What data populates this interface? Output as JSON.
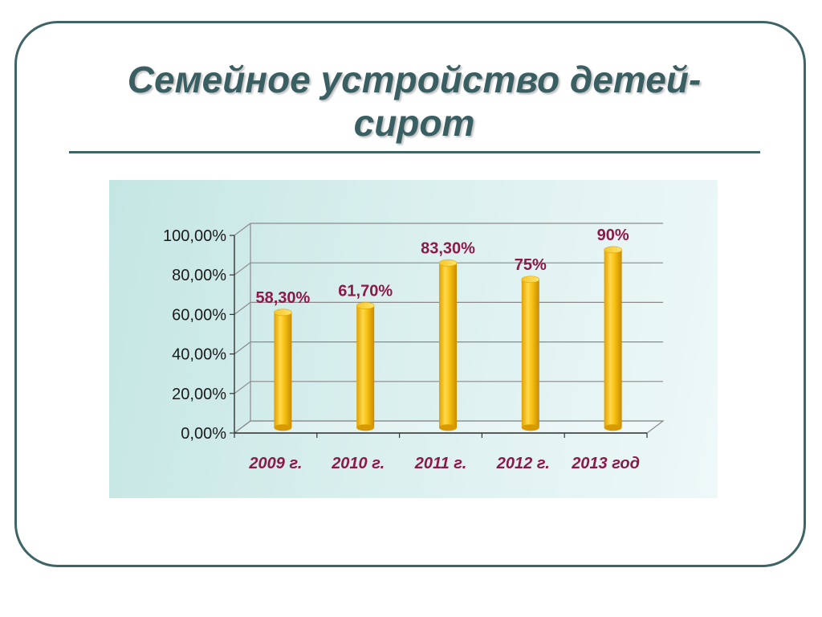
{
  "slide": {
    "title": "Семейное устройство детей-сирот"
  },
  "colors": {
    "frame": "#3f6466",
    "title": "#3a5f62",
    "bar": "#f2b705",
    "bar_highlight": "#ffe066",
    "data_label": "#8b1a4a",
    "category_label": "#8b1a4a",
    "panel_background": "#d3ecea",
    "gridline": "#8a8a8a"
  },
  "chart_data": {
    "type": "bar",
    "style": "3d-cylinder",
    "title": "",
    "xlabel": "",
    "ylabel": "",
    "categories": [
      "2009 г.",
      "2010 г.",
      "2011 г.",
      "2012 г.",
      "2013 год"
    ],
    "values": [
      58.3,
      61.7,
      83.3,
      75,
      90
    ],
    "data_labels": [
      "58,30%",
      "61,70%",
      "83,30%",
      "75%",
      "90%"
    ],
    "ylim": [
      0,
      100
    ],
    "yticks": [
      0,
      20,
      40,
      60,
      80,
      100
    ],
    "ytick_labels": [
      "0,00%",
      "20,00%",
      "40,00%",
      "60,00%",
      "80,00%",
      "100,00%"
    ],
    "grid": true,
    "legend": "none"
  }
}
